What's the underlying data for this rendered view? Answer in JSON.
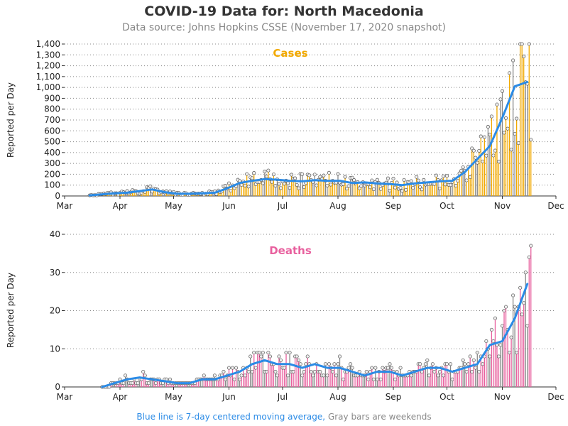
{
  "header": {
    "title": "COVID-19 Data for: North Macedonia",
    "subtitle": "Data source: Johns Hopkins CSSE (November 17, 2020 snapshot)"
  },
  "footer": {
    "blue_text": "Blue line is 7-day centered moving average,",
    "gray_text": "Gray bars are weekends"
  },
  "colors": {
    "cases": "#f2a900",
    "deaths": "#e8609e",
    "moving_average": "#2b8be6",
    "weekend": "#888888"
  },
  "chart_data": [
    {
      "type": "bar",
      "title": "Cases",
      "ylabel": "Reported per Day",
      "x_ticks": [
        "Mar",
        "Apr",
        "May",
        "Jun",
        "Jul",
        "Aug",
        "Sep",
        "Oct",
        "Nov",
        "Dec"
      ],
      "x_range": [
        "2020-03-01",
        "2020-12-01"
      ],
      "y_ticks": [
        "0",
        "100",
        "200",
        "300",
        "400",
        "500",
        "600",
        "700",
        "800",
        "900",
        "1,000",
        "1,100",
        "1,200",
        "1,300",
        "1,400"
      ],
      "ylim": [
        0,
        1400
      ],
      "grid": "horizontal dotted",
      "series": [
        {
          "points": [
            [
              "2020-03-15",
              5
            ],
            [
              "2020-03-29",
              25
            ],
            [
              "2020-04-05",
              30
            ],
            [
              "2020-04-12",
              45
            ],
            [
              "2020-04-19",
              60
            ],
            [
              "2020-04-26",
              35
            ],
            [
              "2020-05-03",
              20
            ],
            [
              "2020-05-10",
              20
            ],
            [
              "2020-05-17",
              25
            ],
            [
              "2020-05-24",
              30
            ],
            [
              "2020-05-31",
              70
            ],
            [
              "2020-06-07",
              120
            ],
            [
              "2020-06-14",
              140
            ],
            [
              "2020-06-21",
              155
            ],
            [
              "2020-06-28",
              150
            ],
            [
              "2020-07-05",
              140
            ],
            [
              "2020-07-12",
              135
            ],
            [
              "2020-07-19",
              145
            ],
            [
              "2020-07-26",
              140
            ],
            [
              "2020-08-02",
              140
            ],
            [
              "2020-08-09",
              120
            ],
            [
              "2020-08-16",
              125
            ],
            [
              "2020-08-23",
              115
            ],
            [
              "2020-08-30",
              110
            ],
            [
              "2020-09-06",
              100
            ],
            [
              "2020-09-13",
              115
            ],
            [
              "2020-09-20",
              125
            ],
            [
              "2020-09-27",
              135
            ],
            [
              "2020-10-04",
              140
            ],
            [
              "2020-10-11",
              220
            ],
            [
              "2020-10-18",
              340
            ],
            [
              "2020-10-25",
              460
            ],
            [
              "2020-11-01",
              720
            ],
            [
              "2020-11-08",
              1010
            ],
            [
              "2020-11-15",
              1050
            ]
          ]
        }
      ]
    },
    {
      "type": "bar",
      "title": "Deaths",
      "ylabel": "Reported per Day",
      "x_ticks": [
        "Mar",
        "Apr",
        "May",
        "Jun",
        "Jul",
        "Aug",
        "Sep",
        "Oct",
        "Nov",
        "Dec"
      ],
      "x_range": [
        "2020-03-01",
        "2020-12-01"
      ],
      "y_ticks": [
        "0",
        "10",
        "20",
        "30",
        "40"
      ],
      "ylim": [
        0,
        40
      ],
      "grid": "horizontal dotted",
      "series": [
        {
          "points": [
            [
              "2020-03-22",
              0
            ],
            [
              "2020-03-29",
              1
            ],
            [
              "2020-04-05",
              2
            ],
            [
              "2020-04-12",
              2.5
            ],
            [
              "2020-04-19",
              2
            ],
            [
              "2020-04-26",
              1.5
            ],
            [
              "2020-05-03",
              1
            ],
            [
              "2020-05-10",
              1
            ],
            [
              "2020-05-17",
              2
            ],
            [
              "2020-05-24",
              2
            ],
            [
              "2020-05-31",
              3
            ],
            [
              "2020-06-07",
              4
            ],
            [
              "2020-06-14",
              6
            ],
            [
              "2020-06-21",
              7
            ],
            [
              "2020-06-28",
              6
            ],
            [
              "2020-07-05",
              6
            ],
            [
              "2020-07-12",
              5
            ],
            [
              "2020-07-19",
              6
            ],
            [
              "2020-07-26",
              5
            ],
            [
              "2020-08-02",
              5
            ],
            [
              "2020-08-09",
              4
            ],
            [
              "2020-08-16",
              3
            ],
            [
              "2020-08-23",
              4
            ],
            [
              "2020-08-30",
              4
            ],
            [
              "2020-09-06",
              3
            ],
            [
              "2020-09-13",
              4
            ],
            [
              "2020-09-20",
              5
            ],
            [
              "2020-09-27",
              5
            ],
            [
              "2020-10-04",
              4
            ],
            [
              "2020-10-11",
              5
            ],
            [
              "2020-10-18",
              6
            ],
            [
              "2020-10-25",
              11
            ],
            [
              "2020-11-01",
              12
            ],
            [
              "2020-11-08",
              18
            ],
            [
              "2020-11-15",
              27
            ]
          ]
        }
      ]
    }
  ]
}
